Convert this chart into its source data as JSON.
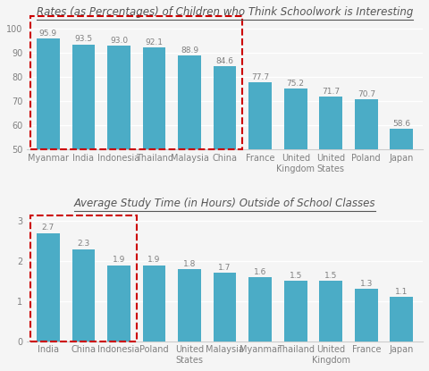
{
  "chart1_title": "Rates (as Percentages) of Children who Think Schoolwork is Interesting",
  "chart1_categories": [
    "Myanmar",
    "India",
    "Indonesia",
    "Thailand",
    "Malaysia",
    "China",
    "France",
    "United\nKingdom",
    "United\nStates",
    "Poland",
    "Japan"
  ],
  "chart1_values": [
    95.9,
    93.5,
    93.0,
    92.1,
    88.9,
    84.6,
    77.7,
    75.2,
    71.7,
    70.7,
    58.6
  ],
  "chart1_ylim": [
    50,
    103
  ],
  "chart1_yticks": [
    50,
    60,
    70,
    80,
    90,
    100
  ],
  "chart1_boxed_count": 6,
  "chart2_title": "Average Study Time (in Hours) Outside of School Classes",
  "chart2_categories": [
    "India",
    "China",
    "Indonesia",
    "Poland",
    "United\nStates",
    "Malaysia",
    "Myanmar",
    "Thailand",
    "United\nKingdom",
    "France",
    "Japan"
  ],
  "chart2_values": [
    2.7,
    2.3,
    1.9,
    1.9,
    1.8,
    1.7,
    1.6,
    1.5,
    1.5,
    1.3,
    1.1
  ],
  "chart2_ylim": [
    0,
    3.2
  ],
  "chart2_yticks": [
    0,
    1,
    2,
    3
  ],
  "chart2_boxed_count": 3,
  "bar_color": "#4BACC6",
  "box_color": "#CC0000",
  "title_fontsize": 8.5,
  "tick_fontsize": 7,
  "value_fontsize": 6.5,
  "background_color": "#f5f5f5"
}
